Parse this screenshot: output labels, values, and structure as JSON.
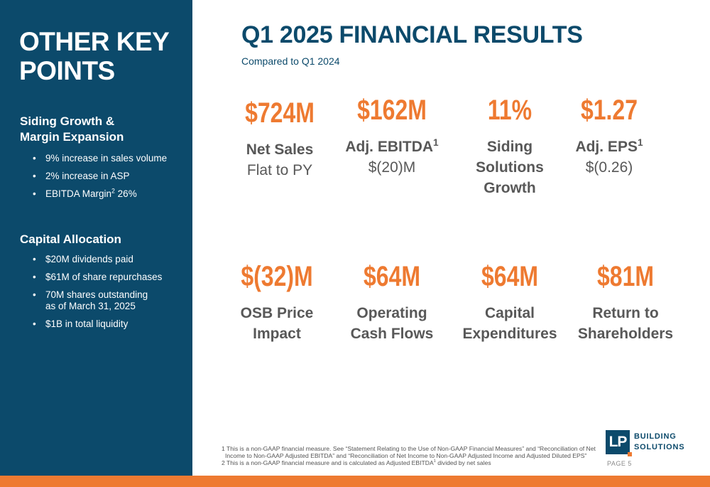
{
  "sidebar": {
    "title_line1": "OTHER KEY",
    "title_line2": "POINTS",
    "sections": [
      {
        "heading_line1": "Siding Growth &",
        "heading_line2": "Margin Expansion",
        "bullets": [
          {
            "text": "9% increase in sales volume"
          },
          {
            "text": "2% increase in ASP"
          },
          {
            "text_pre": "EBITDA Margin",
            "sup": "2",
            "text_post": " 26%"
          }
        ]
      },
      {
        "heading": "Capital Allocation",
        "bullets": [
          {
            "text": "$20M dividends paid"
          },
          {
            "text": "$61M of share repurchases"
          },
          {
            "line1": "70M shares outstanding",
            "line2": "as of March 31, 2025"
          },
          {
            "text": "$1B in total liquidity"
          }
        ]
      }
    ]
  },
  "header": {
    "title": "Q1 2025 FINANCIAL RESULTS",
    "subtitle": "Compared to Q1 2024"
  },
  "metrics": [
    {
      "value": "$724M",
      "label": "Net Sales",
      "sub": "Flat to PY"
    },
    {
      "value": "$162M",
      "label": "Adj. EBITDA",
      "sup": "1",
      "sub": "$(20)M"
    },
    {
      "value": "11%",
      "label_line1": "Siding",
      "label_line2": "Solutions",
      "label_line3": "Growth"
    },
    {
      "value": "$1.27",
      "label": "Adj. EPS",
      "sup": "1",
      "sub": "$(0.26)"
    },
    {
      "value": "$(32)M",
      "label_line1": "OSB Price",
      "label_line2": "Impact"
    },
    {
      "value": "$64M",
      "label_line1": "Operating",
      "label_line2": "Cash Flows"
    },
    {
      "value": "$64M",
      "label_line1": "Capital",
      "label_line2": "Expenditures"
    },
    {
      "value": "$81M",
      "label_line1": "Return to",
      "label_line2": "Shareholders"
    }
  ],
  "footnotes": {
    "line1": "1 This is a non-GAAP financial measure. See “Statement Relating to the Use of Non-GAAP Financial Measures” and “Reconciliation of Net",
    "line2": "Income to Non-GAAP Adjusted EBITDA” and “Reconciliation of Net Income to Non-GAAP Adjusted Income and Adjusted Diluted EPS”",
    "line3_pre": "2 This is a non-GAAP financial measure and is calculated as Adjusted EBITDA",
    "line3_sup": "1",
    "line3_post": " divided by net sales"
  },
  "logo": {
    "mark": "LP",
    "line1": "BUILDING",
    "line2": "SOLUTIONS"
  },
  "page_label": "PAGE 5",
  "colors": {
    "navy": "#0c4a6b",
    "orange": "#ee7a31",
    "gray_text": "#585858"
  }
}
